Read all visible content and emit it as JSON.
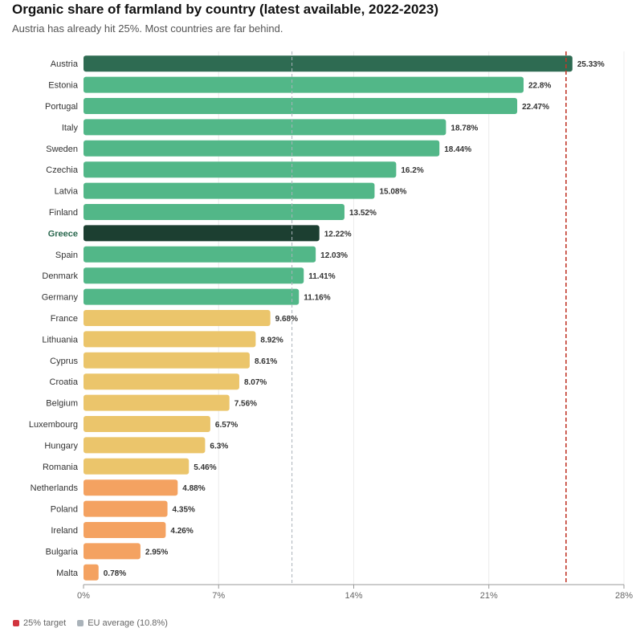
{
  "header": {
    "title": "Organic share of farmland by country (latest available, 2022-2023)",
    "subtitle": "Austria has already hit 25%. Most countries are far behind."
  },
  "legend": {
    "items": [
      {
        "label": "25% target",
        "color": "#d1343e"
      },
      {
        "label": "EU average (10.8%)",
        "color": "#aab3ba"
      }
    ]
  },
  "colors": {
    "top": "#2e6b52",
    "highlight": "#1c3f31",
    "high": "#52b788",
    "mid": "#ebc56b",
    "low": "#f4a261",
    "target": "#c0392b",
    "average": "#aab3ba"
  },
  "chart_data": {
    "type": "bar",
    "orientation": "horizontal",
    "title": "Organic share of farmland by country (latest available, 2022-2023)",
    "subtitle": "Austria has already hit 25%. Most countries are far behind.",
    "categories": [
      "Austria",
      "Estonia",
      "Portugal",
      "Italy",
      "Sweden",
      "Czechia",
      "Latvia",
      "Finland",
      "Greece",
      "Spain",
      "Denmark",
      "Germany",
      "France",
      "Lithuania",
      "Cyprus",
      "Croatia",
      "Belgium",
      "Luxembourg",
      "Hungary",
      "Romania",
      "Netherlands",
      "Poland",
      "Ireland",
      "Bulgaria",
      "Malta"
    ],
    "values": [
      25.33,
      22.8,
      22.47,
      18.78,
      18.44,
      16.2,
      15.08,
      13.52,
      12.22,
      12.03,
      11.41,
      11.16,
      9.68,
      8.92,
      8.61,
      8.07,
      7.56,
      6.57,
      6.3,
      5.46,
      4.88,
      4.35,
      4.26,
      2.95,
      0.78
    ],
    "value_labels": [
      "25.33%",
      "22.8%",
      "22.47%",
      "18.78%",
      "18.44%",
      "16.2%",
      "15.08%",
      "13.52%",
      "12.22%",
      "12.03%",
      "11.41%",
      "11.16%",
      "9.68%",
      "8.92%",
      "8.61%",
      "8.07%",
      "7.56%",
      "6.57%",
      "6.3%",
      "5.46%",
      "4.88%",
      "4.35%",
      "4.26%",
      "2.95%",
      "0.78%"
    ],
    "color_groups": [
      "top",
      "high",
      "high",
      "high",
      "high",
      "high",
      "high",
      "high",
      "highlight",
      "high",
      "high",
      "high",
      "mid",
      "mid",
      "mid",
      "mid",
      "mid",
      "mid",
      "mid",
      "mid",
      "low",
      "low",
      "low",
      "low",
      "low"
    ],
    "highlighted_category": "Greece",
    "xlim": [
      0,
      28
    ],
    "x_ticks": [
      0,
      7,
      14,
      21,
      28
    ],
    "x_tick_labels": [
      "0%",
      "7%",
      "14%",
      "21%",
      "28%"
    ],
    "reference_lines": [
      {
        "label": "25% target",
        "value": 25,
        "style": "dashed",
        "color": "#c0392b"
      },
      {
        "label": "EU average (10.8%)",
        "value": 10.8,
        "style": "dashed",
        "color": "#aab3ba"
      }
    ],
    "grid": true,
    "legend_position": "bottom-left"
  }
}
